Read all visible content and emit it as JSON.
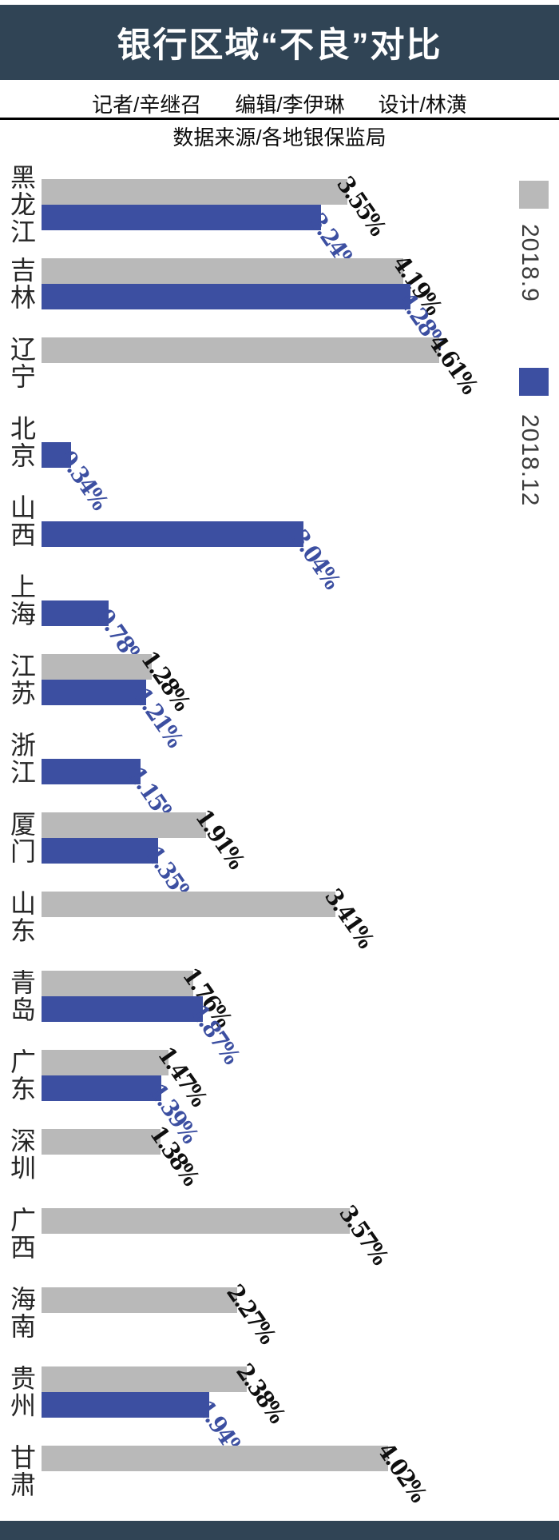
{
  "header": {
    "title": "银行区域“不良”对比"
  },
  "credits": {
    "reporter": "记者/辛继召",
    "editor": "编辑/李伊琳",
    "designer": "设计/林潢"
  },
  "source": "数据来源/各地银保监局",
  "colors": {
    "header_bar": "#304455",
    "footer_bar": "#304455",
    "series_2018_9": "#b9b9b9",
    "series_2018_12": "#3c4fa1",
    "value_label_2018_9": "#0f0f0f",
    "value_label_2018_12": "#3c4fa1"
  },
  "legend": {
    "items": [
      {
        "label": "2018.9",
        "color": "#b9b9b9"
      },
      {
        "label": "2018.12",
        "color": "#3c4fa1"
      }
    ]
  },
  "chart_data": {
    "type": "bar",
    "orientation": "horizontal",
    "value_unit": "%",
    "xlim": [
      0,
      5
    ],
    "grid": false,
    "legend_position": "right",
    "categories": [
      "黑龙江",
      "吉林",
      "辽宁",
      "北京",
      "山西",
      "上海",
      "江苏",
      "浙江",
      "厦门",
      "山东",
      "青岛",
      "广东",
      "深圳",
      "广西",
      "海南",
      "贵州",
      "甘肃"
    ],
    "series": [
      {
        "name": "2018.9",
        "color": "#b9b9b9",
        "values": [
          3.55,
          4.19,
          4.61,
          null,
          null,
          null,
          1.28,
          null,
          1.91,
          3.41,
          1.76,
          1.47,
          1.38,
          3.57,
          2.27,
          2.38,
          4.02
        ]
      },
      {
        "name": "2018.12",
        "color": "#3c4fa1",
        "values": [
          3.24,
          4.28,
          null,
          0.34,
          3.04,
          0.78,
          1.21,
          1.15,
          1.35,
          null,
          1.87,
          1.39,
          null,
          null,
          null,
          1.94,
          null
        ]
      }
    ]
  }
}
